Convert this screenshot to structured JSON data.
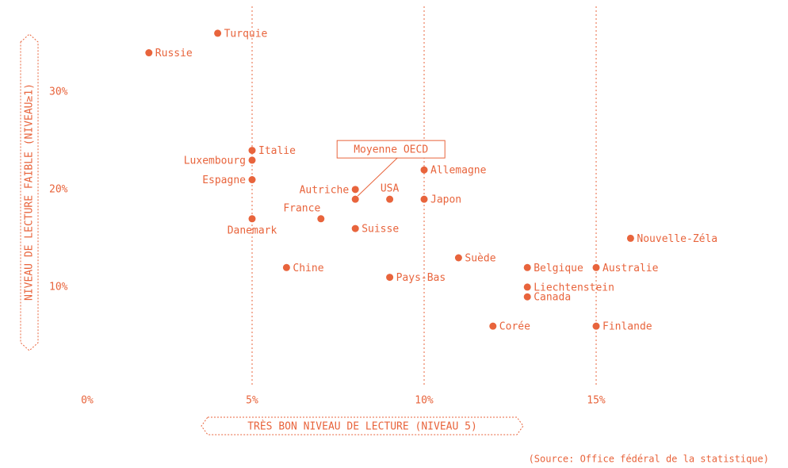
{
  "chart_data": {
    "type": "scatter",
    "color": "#e8643c",
    "grid": true,
    "labels": [
      "Turquie",
      "Russie",
      "Italie",
      "Luxembourg",
      "Espagne",
      "Danemark",
      "France",
      "Autriche",
      "Moyenne OECD",
      "USA",
      "Japon",
      "Allemagne",
      "Suisse",
      "Chine",
      "Pays-Bas",
      "Suède",
      "Belgique",
      "Australie",
      "Nouvelle-Zéla",
      "Liechtenstein",
      "Canada",
      "Corée",
      "Finlande"
    ],
    "x": [
      4,
      2,
      5,
      5,
      5,
      5,
      7,
      8,
      8,
      9,
      10,
      10,
      8,
      6,
      9,
      11,
      13,
      15,
      16,
      13,
      13,
      12,
      15
    ],
    "y": [
      36,
      34,
      24,
      23,
      21,
      17,
      17,
      20,
      19,
      19,
      19,
      22,
      16,
      12,
      11,
      13,
      12,
      12,
      15,
      10,
      9,
      6,
      6
    ],
    "xlim": [
      0,
      20
    ],
    "ylim": [
      0,
      39
    ],
    "xticks": [
      {
        "value": 0,
        "label": "0%"
      },
      {
        "value": 5,
        "label": "5%"
      },
      {
        "value": 10,
        "label": "10%"
      },
      {
        "value": 15,
        "label": "15%"
      }
    ],
    "yticks": [
      {
        "value": 10,
        "label": "10%"
      },
      {
        "value": 20,
        "label": "20%"
      },
      {
        "value": 30,
        "label": "30%"
      }
    ],
    "x_label": "TRÈS BON NIVEAU DE LECTURE (NIVEAU 5)",
    "y_label": "NIVEAU DE LECTURE FAIBLE (NIVEAU≥1)",
    "source": "(Source: Office fédéral de la statistique)"
  }
}
